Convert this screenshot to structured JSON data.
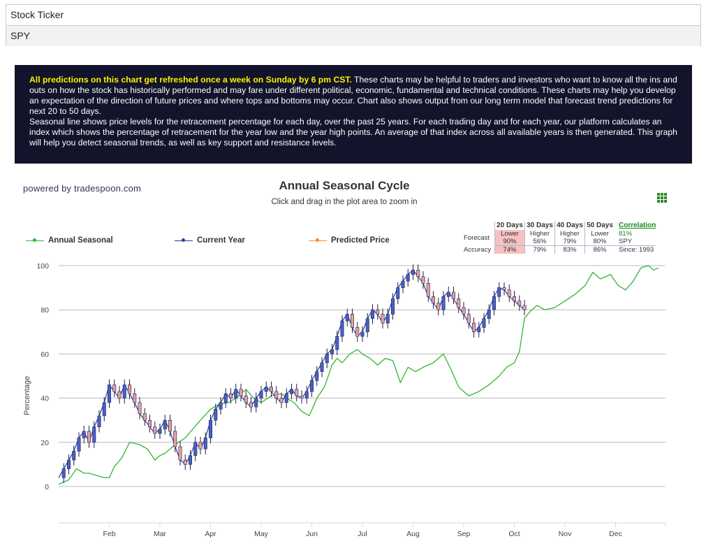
{
  "ticker_panel": {
    "label": "Stock Ticker",
    "value": "SPY"
  },
  "info": {
    "highlight": "All predictions on this chart get refreshed once a week on Sunday by 6 pm CST.",
    "paragraph1": " These charts may be helpful to traders and investors who want to know all the ins and outs on how the stock has historically performed and may fare under different political, economic, fundamental and technical conditions. These charts may help you develop an expectation of the direction of future prices and where tops and bottoms may occur. Chart also shows output from our long term model that forecast trend predictions for next 20 to 50 days.",
    "paragraph2": "Seasonal line shows price levels for the retracement percentage for each day, over the past 25 years. For each trading day and for each year, our platform calculates an index which shows the percentage of retracement for the year low and the year high points. An average of that index across all available years is then generated. This graph will help you detect seasonal trends, as well as key support and resistance levels."
  },
  "powered_by": "powered by tradespoon.com",
  "stats": {
    "headers": [
      "20 Days",
      "30 Days",
      "40 Days",
      "50 Days"
    ],
    "forecast_label": "Forecast",
    "forecast": [
      "Lower",
      "Higher",
      "Higher",
      "Lower"
    ],
    "forecast_pct": [
      "90%",
      "56%",
      "79%",
      "80%"
    ],
    "accuracy_label": "Accuracy",
    "accuracy": [
      "74%",
      "79%",
      "83%",
      "86%"
    ],
    "correlation_label": "Correlation",
    "correlation_value": "81%",
    "symbol": "SPY",
    "since": "Since: 1993"
  },
  "chart_data": {
    "type": "line",
    "title": "Annual Seasonal Cycle",
    "subtitle": "Click and drag in the plot area to zoom in",
    "ylabel": "Percentage",
    "ylim": [
      0,
      100
    ],
    "yticks": [
      0,
      20,
      40,
      60,
      80,
      100
    ],
    "x_ticks": [
      "Feb",
      "Mar",
      "Apr",
      "May",
      "Jun",
      "Jul",
      "Aug",
      "Sep",
      "Oct",
      "Nov",
      "Dec"
    ],
    "grid": true,
    "legend_position": "top-left",
    "colors": {
      "seasonal": "#33b633",
      "current": "#2b3a9e",
      "predicted": "#f28c3a",
      "candle_down": "#e8a0a0"
    },
    "series": [
      {
        "name": "Annual Seasonal",
        "x": [
          0,
          0.2,
          0.35,
          0.5,
          0.6,
          0.75,
          0.9,
          1.0,
          1.1,
          1.25,
          1.4,
          1.6,
          1.75,
          1.9,
          2.0,
          2.1,
          2.3,
          2.5,
          2.65,
          2.8,
          3.0,
          3.15,
          3.35,
          3.5,
          3.7,
          3.85,
          4.0,
          4.2,
          4.4,
          4.5,
          4.65,
          4.8,
          4.95,
          5.1,
          5.25,
          5.4,
          5.5,
          5.6,
          5.75,
          5.9,
          6.0,
          6.15,
          6.3,
          6.45,
          6.6,
          6.75,
          6.9,
          7.05,
          7.2,
          7.4,
          7.6,
          7.75,
          7.9,
          8.0,
          8.1,
          8.3,
          8.5,
          8.7,
          8.85,
          9.0,
          9.1,
          9.2,
          9.3,
          9.45,
          9.6,
          9.8,
          10.0,
          10.2,
          10.4,
          10.55,
          10.7,
          10.9,
          11.05,
          11.2,
          11.35,
          11.5,
          11.65,
          11.75,
          11.85
        ],
        "values": [
          1,
          3,
          8,
          6,
          6,
          5,
          4,
          4,
          9,
          13,
          20,
          19,
          17,
          12,
          14,
          15,
          19,
          22,
          26,
          30,
          35,
          37,
          38,
          40,
          44,
          40,
          38,
          41,
          42,
          40,
          38,
          34,
          32,
          40,
          45,
          55,
          58,
          56,
          60,
          62,
          60,
          58,
          55,
          58,
          57,
          47,
          54,
          52,
          54,
          56,
          60,
          53,
          45,
          43,
          41,
          43,
          46,
          50,
          54,
          56,
          61,
          76,
          79,
          82,
          80,
          81,
          84,
          87,
          91,
          97,
          94,
          96,
          91,
          89,
          93,
          99,
          100,
          98,
          99
        ]
      },
      {
        "name": "Current Year",
        "x": [
          0,
          0.1,
          0.2,
          0.3,
          0.4,
          0.5,
          0.6,
          0.7,
          0.8,
          0.9,
          1.0,
          1.1,
          1.2,
          1.3,
          1.4,
          1.5,
          1.6,
          1.7,
          1.8,
          1.9,
          2.0,
          2.1,
          2.2,
          2.3,
          2.4,
          2.5,
          2.6,
          2.7,
          2.8,
          2.9,
          3.0,
          3.1,
          3.2,
          3.3,
          3.4,
          3.5,
          3.6,
          3.7,
          3.8,
          3.9,
          4.0,
          4.1,
          4.2,
          4.3,
          4.4,
          4.5,
          4.6,
          4.7,
          4.8,
          4.9,
          5.0,
          5.1,
          5.2,
          5.3,
          5.4,
          5.5,
          5.6,
          5.7,
          5.8,
          5.9,
          6.0,
          6.1,
          6.2,
          6.3,
          6.4,
          6.5,
          6.6,
          6.7,
          6.8,
          6.9,
          7.0,
          7.1,
          7.2,
          7.3,
          7.4,
          7.5,
          7.6,
          7.7,
          7.8,
          7.9,
          8.0,
          8.1,
          8.2,
          8.3,
          8.4,
          8.5,
          8.6,
          8.7,
          8.8,
          8.9,
          9.0,
          9.1,
          9.2
        ],
        "values": [
          4,
          8,
          12,
          16,
          22,
          25,
          20,
          27,
          32,
          38,
          46,
          43,
          40,
          46,
          42,
          38,
          33,
          30,
          27,
          24,
          26,
          30,
          25,
          18,
          12,
          10,
          14,
          20,
          17,
          22,
          30,
          35,
          38,
          42,
          40,
          44,
          41,
          38,
          36,
          40,
          43,
          45,
          43,
          40,
          38,
          42,
          44,
          41,
          40,
          43,
          48,
          52,
          56,
          60,
          62,
          68,
          75,
          78,
          72,
          68,
          70,
          76,
          80,
          78,
          74,
          78,
          85,
          90,
          93,
          96,
          98,
          95,
          92,
          86,
          83,
          80,
          86,
          88,
          85,
          81,
          78,
          74,
          70,
          72,
          76,
          80,
          86,
          90,
          89,
          86,
          84,
          82,
          80
        ]
      }
    ]
  }
}
